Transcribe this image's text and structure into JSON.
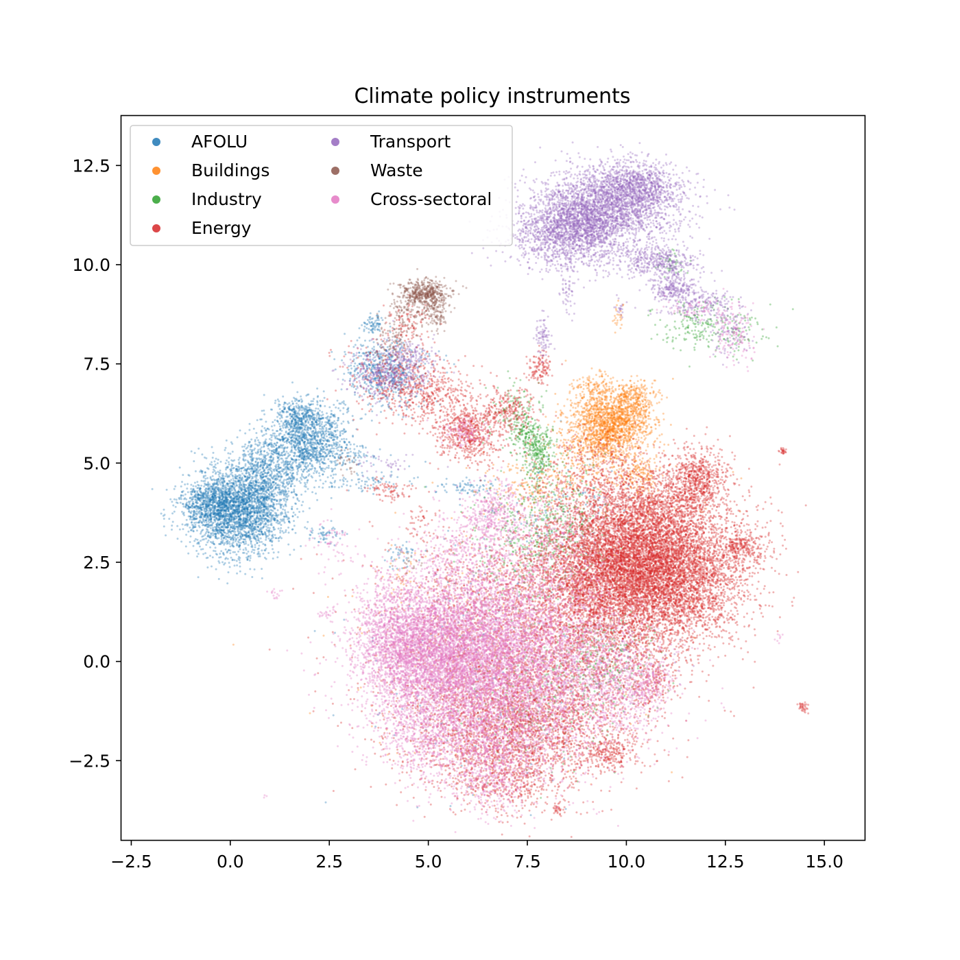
{
  "chart_data": {
    "type": "scatter",
    "title": "Climate policy instruments",
    "xlabel": "",
    "ylabel": "",
    "xlim": [
      -2.75,
      16.0
    ],
    "ylim": [
      -4.5,
      13.75
    ],
    "xticks": [
      {
        "value": -2.5,
        "label": "−2.5"
      },
      {
        "value": 0.0,
        "label": "0.0"
      },
      {
        "value": 2.5,
        "label": "2.5"
      },
      {
        "value": 5.0,
        "label": "5.0"
      },
      {
        "value": 7.5,
        "label": "7.5"
      },
      {
        "value": 10.0,
        "label": "10.0"
      },
      {
        "value": 12.5,
        "label": "12.5"
      },
      {
        "value": 15.0,
        "label": "15.0"
      }
    ],
    "yticks": [
      {
        "value": -2.5,
        "label": "−2.5"
      },
      {
        "value": 0.0,
        "label": "0.0"
      },
      {
        "value": 2.5,
        "label": "2.5"
      },
      {
        "value": 5.0,
        "label": "5.0"
      },
      {
        "value": 7.5,
        "label": "7.5"
      },
      {
        "value": 10.0,
        "label": "10.0"
      },
      {
        "value": 12.5,
        "label": "12.5"
      }
    ],
    "grid": false,
    "legend_position": "top-left",
    "legend_columns": 2,
    "series": [
      {
        "name": "AFOLU",
        "color": "#1f77b4",
        "clusters": [
          [
            0.2,
            3.8,
            0.6,
            0.55,
            2600
          ],
          [
            -0.5,
            4.0,
            0.35,
            0.25,
            500
          ],
          [
            1.0,
            4.8,
            0.5,
            0.45,
            700
          ],
          [
            2.0,
            5.6,
            0.5,
            0.45,
            1100
          ],
          [
            1.7,
            6.2,
            0.25,
            0.25,
            250
          ],
          [
            3.9,
            7.3,
            0.5,
            0.45,
            550
          ],
          [
            3.6,
            8.5,
            0.15,
            0.12,
            70
          ],
          [
            2.4,
            3.2,
            0.2,
            0.12,
            50
          ],
          [
            3.3,
            4.5,
            0.6,
            0.15,
            90
          ],
          [
            3.0,
            5.2,
            0.4,
            0.15,
            70
          ],
          [
            6.0,
            4.4,
            0.4,
            0.12,
            70
          ],
          [
            4.3,
            2.7,
            0.2,
            0.2,
            40
          ],
          [
            8.2,
            3.8,
            1.0,
            0.6,
            100
          ],
          [
            6.0,
            0.0,
            1.6,
            1.6,
            150
          ]
        ]
      },
      {
        "name": "Buildings",
        "color": "#ff7f0e",
        "clusters": [
          [
            9.65,
            6.05,
            0.5,
            0.4,
            1400
          ],
          [
            9.3,
            5.5,
            0.5,
            0.45,
            500
          ],
          [
            10.2,
            6.7,
            0.3,
            0.2,
            200
          ],
          [
            9.2,
            6.9,
            0.3,
            0.2,
            120
          ],
          [
            10.4,
            4.7,
            0.25,
            0.25,
            150
          ],
          [
            7.7,
            4.5,
            0.6,
            0.3,
            150
          ],
          [
            9.0,
            4.0,
            1.5,
            1.0,
            200
          ],
          [
            4.3,
            2.2,
            0.3,
            0.3,
            30
          ],
          [
            9.8,
            8.7,
            0.08,
            0.2,
            25
          ],
          [
            6.5,
            0.0,
            2.0,
            1.5,
            150
          ]
        ]
      },
      {
        "name": "Industry",
        "color": "#2ca02c",
        "clusters": [
          [
            7.8,
            5.3,
            0.2,
            0.35,
            250
          ],
          [
            7.45,
            5.7,
            0.2,
            0.25,
            120
          ],
          [
            7.2,
            6.3,
            0.35,
            0.35,
            120
          ],
          [
            8.3,
            3.5,
            0.6,
            0.8,
            300
          ],
          [
            7.5,
            3.0,
            0.8,
            0.8,
            250
          ],
          [
            7.8,
            -0.8,
            1.0,
            1.0,
            250
          ],
          [
            9.5,
            -0.1,
            0.6,
            0.6,
            200
          ],
          [
            12.3,
            8.4,
            0.6,
            0.35,
            180
          ],
          [
            11.2,
            10.0,
            0.2,
            0.15,
            40
          ],
          [
            11.5,
            8.6,
            0.5,
            0.2,
            60
          ]
        ]
      },
      {
        "name": "Energy",
        "color": "#d62728",
        "clusters": [
          [
            10.4,
            2.6,
            1.25,
            0.8,
            6500
          ],
          [
            11.3,
            1.8,
            0.8,
            0.7,
            1300
          ],
          [
            9.4,
            2.0,
            0.9,
            0.9,
            1400
          ],
          [
            11.8,
            4.6,
            0.4,
            0.4,
            700
          ],
          [
            10.6,
            3.8,
            0.7,
            0.5,
            800
          ],
          [
            12.9,
            2.9,
            0.3,
            0.2,
            220
          ],
          [
            9.2,
            4.6,
            0.8,
            0.6,
            500
          ],
          [
            6.0,
            5.7,
            0.4,
            0.35,
            500
          ],
          [
            7.0,
            6.3,
            0.35,
            0.3,
            250
          ],
          [
            7.8,
            7.4,
            0.15,
            0.2,
            120
          ],
          [
            4.8,
            6.8,
            0.6,
            0.4,
            450
          ],
          [
            4.0,
            7.3,
            0.6,
            0.4,
            200
          ],
          [
            5.8,
            6.3,
            0.5,
            0.4,
            150
          ],
          [
            4.5,
            8.5,
            0.3,
            0.3,
            100
          ],
          [
            4.0,
            4.3,
            0.3,
            0.12,
            80
          ],
          [
            9.5,
            1.0,
            1.3,
            0.9,
            1500
          ],
          [
            8.0,
            -1.5,
            1.2,
            0.8,
            1200
          ],
          [
            6.6,
            -2.0,
            1.0,
            0.7,
            800
          ],
          [
            7.0,
            -3.0,
            0.6,
            0.4,
            300
          ],
          [
            9.6,
            -2.3,
            0.3,
            0.2,
            200
          ],
          [
            10.7,
            -0.5,
            0.3,
            0.3,
            150
          ],
          [
            7.5,
            -0.5,
            1.5,
            1.2,
            1500
          ],
          [
            6.0,
            0.0,
            1.5,
            1.5,
            700
          ],
          [
            6.5,
            1.8,
            1.0,
            0.8,
            500
          ],
          [
            13.95,
            5.3,
            0.05,
            0.04,
            25
          ],
          [
            14.45,
            -1.15,
            0.06,
            0.08,
            35
          ],
          [
            8.3,
            -3.7,
            0.08,
            0.1,
            30
          ],
          [
            4.8,
            3.5,
            0.2,
            0.2,
            40
          ]
        ]
      },
      {
        "name": "Transport",
        "color": "#9467bd",
        "clusters": [
          [
            9.6,
            11.5,
            0.9,
            0.5,
            2300
          ],
          [
            8.4,
            10.8,
            0.7,
            0.45,
            1300
          ],
          [
            10.3,
            12.0,
            0.5,
            0.3,
            600
          ],
          [
            9.0,
            11.0,
            0.5,
            0.5,
            500
          ],
          [
            10.8,
            10.1,
            0.5,
            0.2,
            400
          ],
          [
            11.2,
            9.4,
            0.3,
            0.2,
            250
          ],
          [
            11.9,
            9.0,
            0.5,
            0.2,
            200
          ],
          [
            12.6,
            8.3,
            0.3,
            0.3,
            100
          ],
          [
            7.9,
            8.2,
            0.1,
            0.25,
            80
          ],
          [
            8.5,
            9.4,
            0.1,
            0.4,
            60
          ],
          [
            4.0,
            7.3,
            0.5,
            0.35,
            450
          ],
          [
            4.6,
            7.8,
            0.3,
            0.15,
            80
          ],
          [
            3.8,
            5.0,
            0.5,
            0.15,
            40
          ],
          [
            9.5,
            0.0,
            0.8,
            0.6,
            100
          ],
          [
            9.85,
            8.9,
            0.05,
            0.1,
            20
          ]
        ]
      },
      {
        "name": "Waste",
        "color": "#8c564b",
        "clusters": [
          [
            4.9,
            9.3,
            0.3,
            0.15,
            450
          ],
          [
            5.2,
            8.9,
            0.15,
            0.25,
            160
          ],
          [
            4.4,
            8.8,
            0.25,
            0.3,
            120
          ],
          [
            4.1,
            8.0,
            0.2,
            0.3,
            80
          ],
          [
            3.0,
            5.0,
            0.15,
            0.15,
            25
          ],
          [
            4.5,
            2.5,
            0.2,
            0.2,
            20
          ]
        ]
      },
      {
        "name": "Cross-sectoral",
        "color": "#e377c2",
        "clusters": [
          [
            5.5,
            0.2,
            1.1,
            1.0,
            4200
          ],
          [
            4.5,
            0.3,
            0.6,
            0.6,
            1200
          ],
          [
            6.8,
            0.6,
            1.4,
            1.0,
            3000
          ],
          [
            7.8,
            -0.5,
            1.4,
            1.1,
            2200
          ],
          [
            6.5,
            -1.8,
            1.0,
            0.7,
            1300
          ],
          [
            6.7,
            3.8,
            0.4,
            0.4,
            350
          ],
          [
            6.5,
            -3.0,
            0.6,
            0.4,
            300
          ],
          [
            4.7,
            -1.8,
            0.5,
            0.6,
            350
          ],
          [
            3.9,
            1.0,
            0.4,
            0.6,
            250
          ],
          [
            9.8,
            -0.5,
            0.6,
            0.6,
            350
          ],
          [
            10.5,
            -0.6,
            0.3,
            0.4,
            200
          ],
          [
            12.7,
            8.2,
            0.3,
            0.4,
            130
          ],
          [
            11.8,
            8.9,
            0.4,
            0.15,
            60
          ],
          [
            5.9,
            5.8,
            0.3,
            0.2,
            120
          ],
          [
            6.0,
            3.0,
            0.6,
            0.5,
            300
          ],
          [
            8.0,
            2.8,
            0.8,
            0.8,
            400
          ],
          [
            2.5,
            3.0,
            0.3,
            0.3,
            60
          ],
          [
            2.4,
            1.2,
            0.1,
            0.06,
            20
          ],
          [
            1.1,
            1.7,
            0.08,
            0.06,
            15
          ],
          [
            13.8,
            0.6,
            0.06,
            0.06,
            8
          ],
          [
            0.9,
            -3.4,
            0.03,
            0.03,
            3
          ]
        ]
      }
    ]
  }
}
